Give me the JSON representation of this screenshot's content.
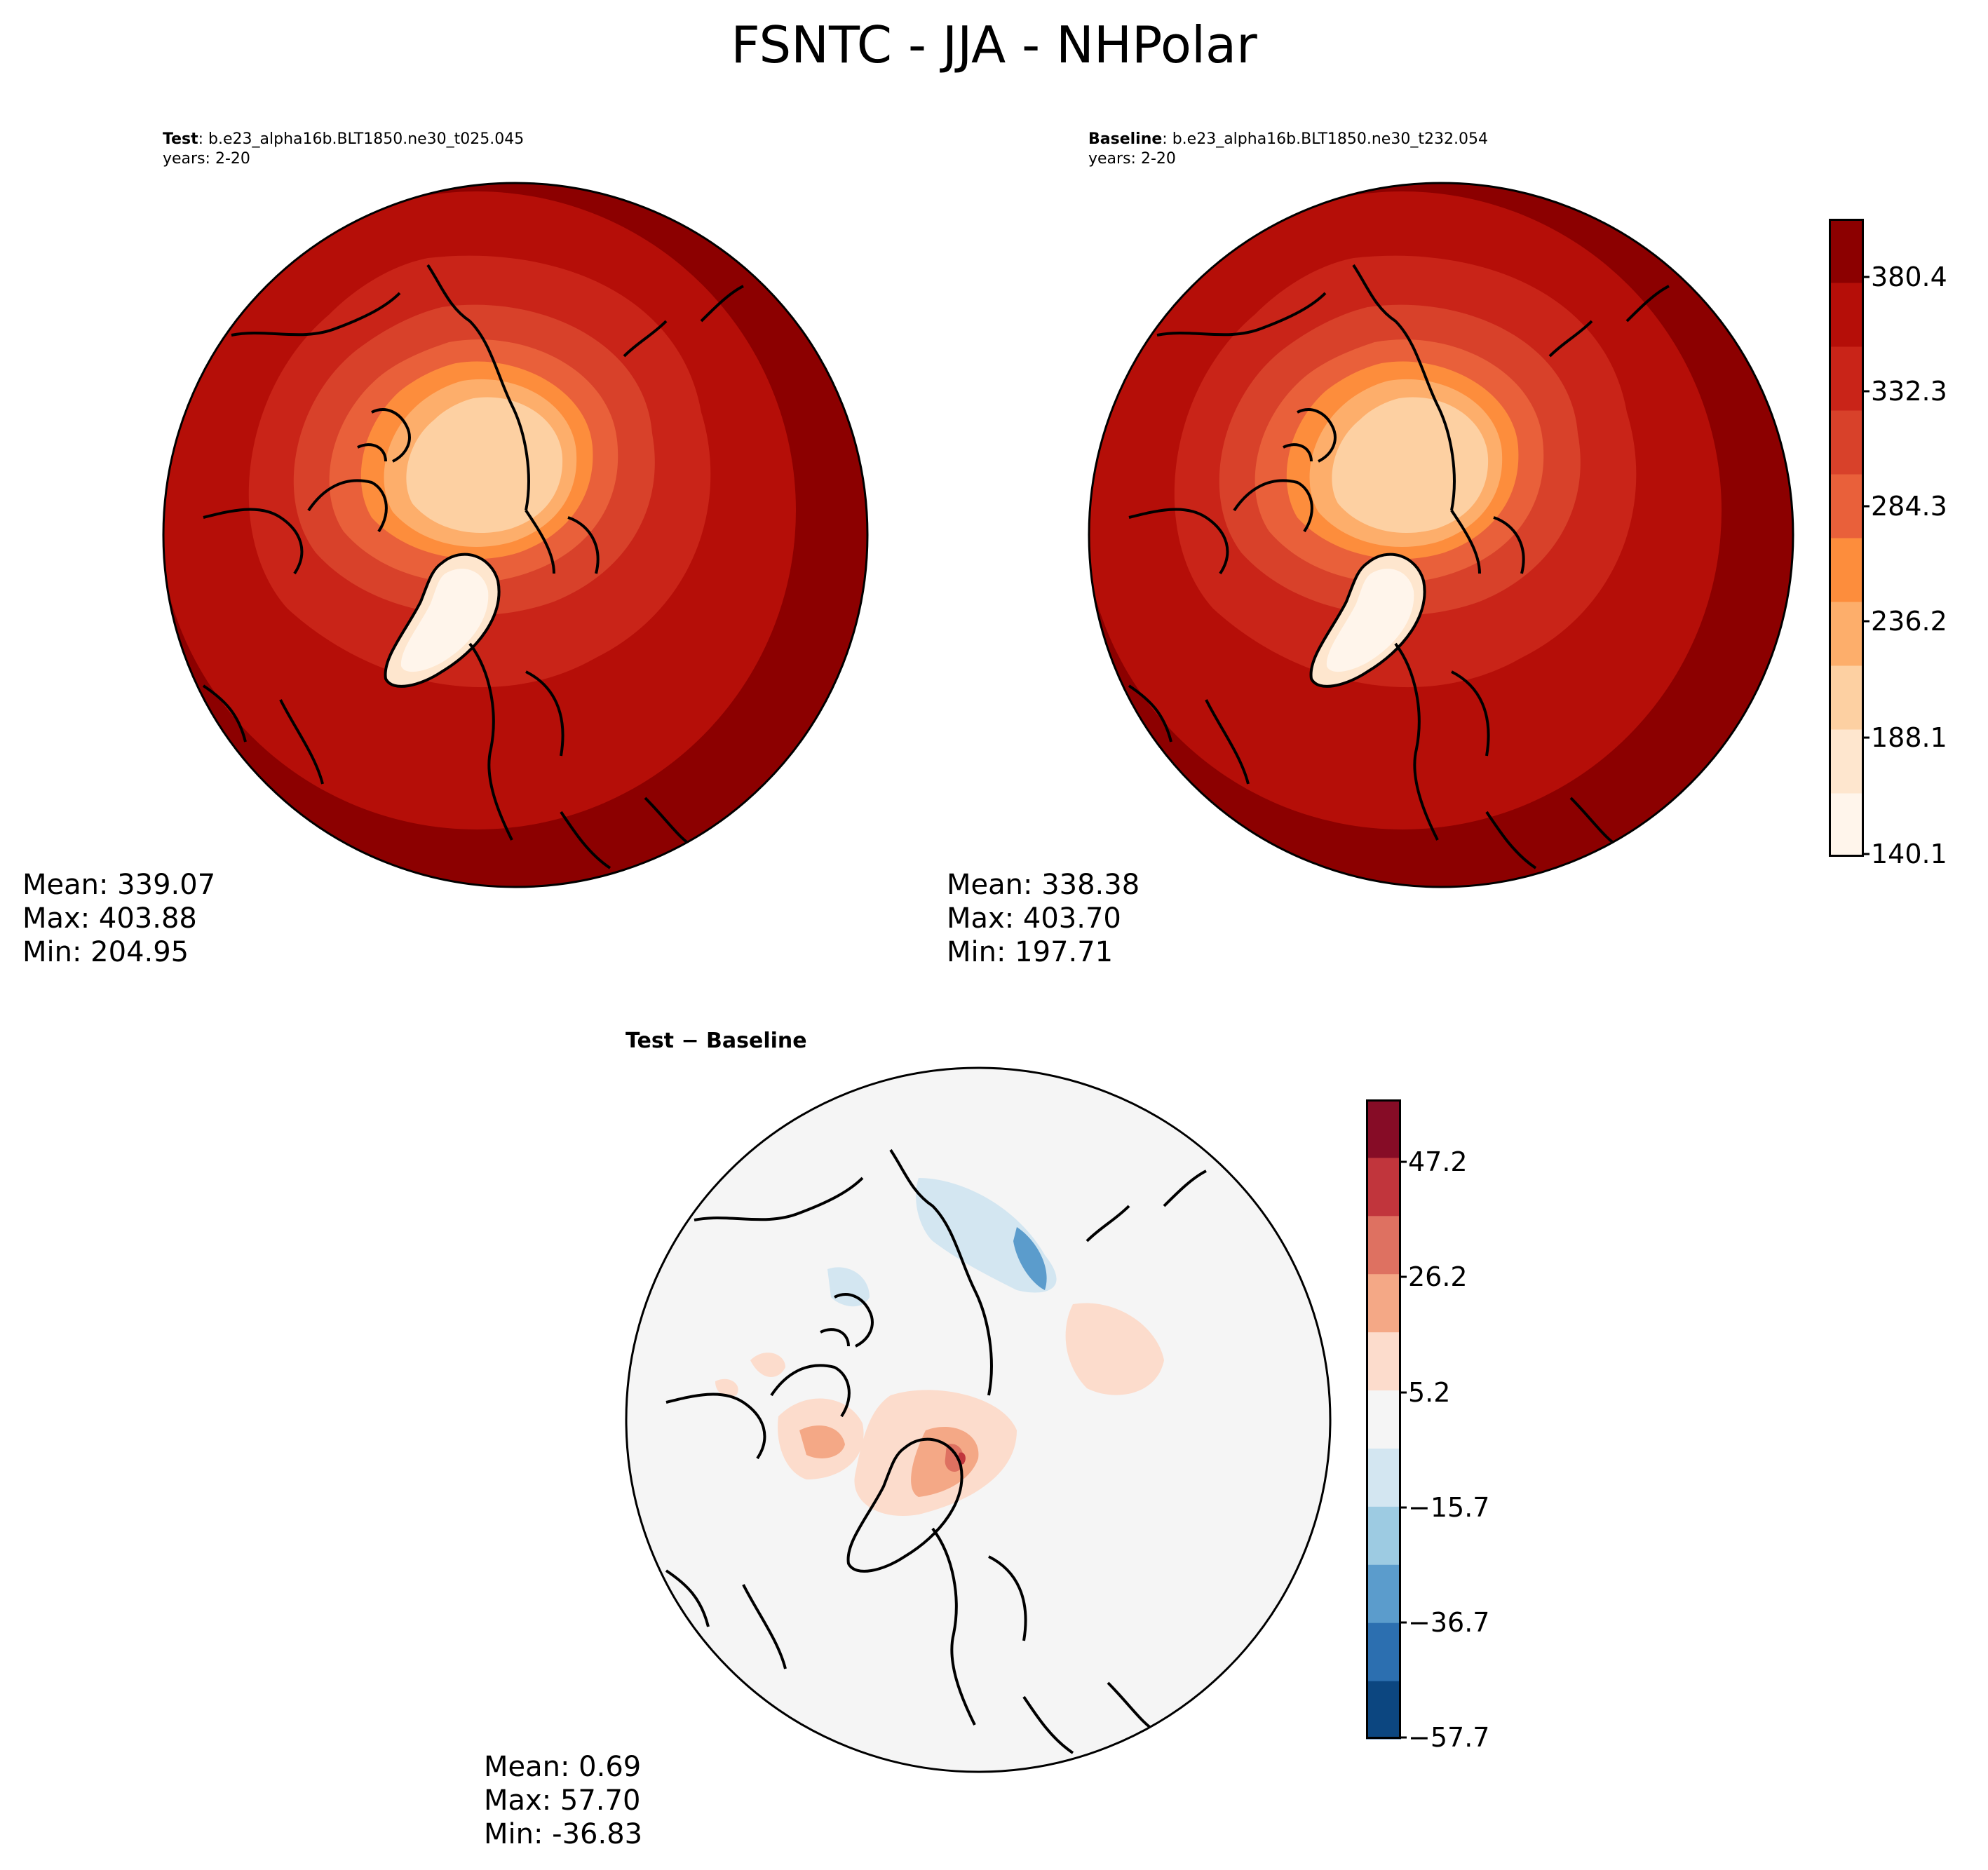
{
  "figure": {
    "title": "FSNTC - JJA - NHPolar"
  },
  "panels": {
    "test": {
      "label": "Test",
      "case_name": ": b.e23_alpha16b.BLT1850.ne30_t025.045",
      "years": "years: 2-20",
      "mean": "Mean: 339.07",
      "max": "Max: 403.88",
      "min": "Min: 204.95"
    },
    "baseline": {
      "label": "Baseline",
      "case_name": ": b.e23_alpha16b.BLT1850.ne30_t232.054",
      "years": "years: 2-20",
      "mean": "Mean: 338.38",
      "max": "Max: 403.70",
      "min": "Min: 197.71"
    },
    "diff": {
      "label": "Test − Baseline",
      "mean": "Mean:  0.69",
      "max": "Max: 57.70",
      "min": "Min: -36.83"
    }
  },
  "colorbars": {
    "main": {
      "ticks": [
        "380.4",
        "332.3",
        "284.3",
        "236.2",
        "188.1",
        "140.1"
      ],
      "colors": [
        "#fff5eb",
        "#fee6ce",
        "#fdd0a2",
        "#fdae6b",
        "#fd8d3c",
        "#e9603a",
        "#d8412a",
        "#c92418",
        "#b50e08",
        "#8c0000"
      ]
    },
    "diff": {
      "ticks": [
        "47.2",
        "26.2",
        "5.2",
        "−15.7",
        "−36.7",
        "−57.7"
      ],
      "colors": [
        "#0c4680",
        "#2c6fb0",
        "#5b9ccc",
        "#9dcbe2",
        "#d3e6f1",
        "#f5f5f5",
        "#fcdccc",
        "#f4a886",
        "#de7161",
        "#c1353c",
        "#860c26"
      ]
    }
  }
}
